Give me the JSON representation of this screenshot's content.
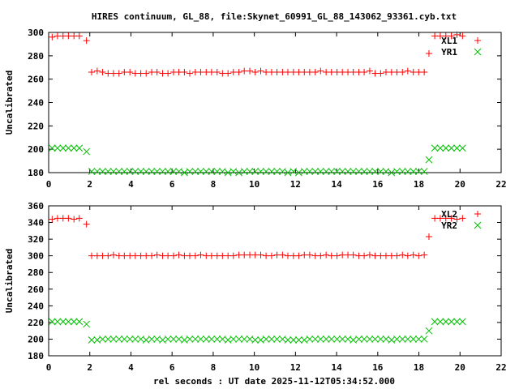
{
  "title": "HIRES continuum, GL_88, file:Skynet_60991_GL_88_143062_93361.cyb.txt",
  "colors": {
    "xl": "#ff0000",
    "yr": "#00c000"
  },
  "chart_data": [
    {
      "type": "scatter",
      "ylabel": "Uncalibrated",
      "xlabel": "",
      "xlim": [
        0,
        22
      ],
      "ylim": [
        180,
        300
      ],
      "xticks": [
        "0",
        "2",
        "4",
        "6",
        "8",
        "10",
        "12",
        "14",
        "16",
        "18",
        "20",
        "22"
      ],
      "yticks": [
        "180",
        "200",
        "220",
        "240",
        "260",
        "280",
        "300"
      ],
      "legend_position": "top-right",
      "x": [
        0.17,
        0.43,
        0.7,
        0.96,
        1.23,
        1.49,
        1.84,
        2.09,
        2.36,
        2.62,
        2.89,
        3.15,
        3.42,
        3.68,
        3.95,
        4.21,
        4.48,
        4.74,
        5.01,
        5.27,
        5.54,
        5.8,
        6.07,
        6.33,
        6.6,
        6.86,
        7.13,
        7.39,
        7.66,
        7.92,
        8.19,
        8.45,
        8.72,
        8.98,
        9.25,
        9.51,
        9.78,
        10.04,
        10.31,
        10.57,
        10.84,
        11.1,
        11.37,
        11.63,
        11.9,
        12.16,
        12.43,
        12.69,
        12.96,
        13.22,
        13.49,
        13.75,
        14.02,
        14.28,
        14.55,
        14.81,
        15.08,
        15.34,
        15.61,
        15.87,
        16.14,
        16.4,
        16.67,
        16.93,
        17.2,
        17.46,
        17.73,
        17.99,
        18.26,
        18.49,
        18.77,
        19.04,
        19.31,
        19.58,
        19.85,
        20.12
      ],
      "series": [
        {
          "name": "XL1",
          "marker": "plus",
          "values": [
            296,
            297,
            297,
            297,
            297,
            297,
            293,
            266,
            267,
            266,
            265,
            265,
            265,
            266,
            266,
            265,
            265,
            265,
            266,
            266,
            265,
            265,
            266,
            266,
            266,
            265,
            266,
            266,
            266,
            266,
            266,
            265,
            265,
            266,
            266,
            267,
            267,
            266,
            267,
            266,
            266,
            266,
            266,
            266,
            266,
            266,
            266,
            266,
            266,
            267,
            266,
            266,
            266,
            266,
            266,
            266,
            266,
            266,
            267,
            265,
            265,
            266,
            266,
            266,
            266,
            267,
            266,
            266,
            266,
            282,
            297,
            297,
            297,
            297,
            298,
            297
          ]
        },
        {
          "name": "YR1",
          "marker": "cross",
          "values": [
            201,
            201,
            201,
            201,
            201,
            201,
            198,
            181,
            181,
            181,
            181,
            181,
            181,
            181,
            181,
            181,
            181,
            181,
            181,
            181,
            181,
            181,
            181,
            181,
            180,
            181,
            181,
            181,
            181,
            181,
            181,
            181,
            180,
            181,
            180,
            181,
            181,
            181,
            181,
            181,
            181,
            181,
            181,
            180,
            181,
            180,
            181,
            181,
            181,
            181,
            181,
            181,
            181,
            181,
            181,
            181,
            181,
            181,
            181,
            181,
            181,
            181,
            180,
            181,
            181,
            181,
            181,
            181,
            181,
            191,
            201,
            201,
            201,
            201,
            201,
            201
          ]
        }
      ]
    },
    {
      "type": "scatter",
      "ylabel": "Uncalibrated",
      "xlabel": "rel seconds : UT date 2025-11-12T05:34:52.000",
      "xlim": [
        0,
        22
      ],
      "ylim": [
        180,
        360
      ],
      "xticks": [
        "0",
        "2",
        "4",
        "6",
        "8",
        "10",
        "12",
        "14",
        "16",
        "18",
        "20",
        "22"
      ],
      "yticks": [
        "180",
        "200",
        "220",
        "240",
        "260",
        "280",
        "300",
        "320",
        "340",
        "360"
      ],
      "legend_position": "top-right",
      "x": [
        0.17,
        0.43,
        0.7,
        0.96,
        1.23,
        1.49,
        1.84,
        2.09,
        2.36,
        2.62,
        2.89,
        3.15,
        3.42,
        3.68,
        3.95,
        4.21,
        4.48,
        4.74,
        5.01,
        5.27,
        5.54,
        5.8,
        6.07,
        6.33,
        6.6,
        6.86,
        7.13,
        7.39,
        7.66,
        7.92,
        8.19,
        8.45,
        8.72,
        8.98,
        9.25,
        9.51,
        9.78,
        10.04,
        10.31,
        10.57,
        10.84,
        11.1,
        11.37,
        11.63,
        11.9,
        12.16,
        12.43,
        12.69,
        12.96,
        13.22,
        13.49,
        13.75,
        14.02,
        14.28,
        14.55,
        14.81,
        15.08,
        15.34,
        15.61,
        15.87,
        16.14,
        16.4,
        16.67,
        16.93,
        17.2,
        17.46,
        17.73,
        17.99,
        18.26,
        18.49,
        18.77,
        19.04,
        19.31,
        19.58,
        19.85,
        20.12
      ],
      "series": [
        {
          "name": "XL2",
          "marker": "plus",
          "values": [
            344,
            345,
            345,
            345,
            344,
            345,
            338,
            300,
            300,
            300,
            300,
            301,
            300,
            300,
            300,
            300,
            300,
            300,
            300,
            301,
            300,
            300,
            300,
            301,
            300,
            300,
            300,
            301,
            300,
            300,
            300,
            300,
            300,
            300,
            301,
            301,
            301,
            301,
            301,
            300,
            300,
            301,
            301,
            300,
            300,
            300,
            301,
            301,
            300,
            300,
            301,
            300,
            300,
            301,
            301,
            301,
            300,
            300,
            301,
            300,
            300,
            300,
            300,
            300,
            301,
            300,
            301,
            300,
            301,
            323,
            345,
            345,
            345,
            345,
            344,
            345
          ]
        },
        {
          "name": "YR2",
          "marker": "cross",
          "values": [
            221,
            221,
            221,
            221,
            221,
            221,
            218,
            199,
            199,
            200,
            200,
            200,
            200,
            200,
            200,
            200,
            200,
            199,
            200,
            200,
            199,
            200,
            200,
            200,
            199,
            200,
            200,
            200,
            200,
            200,
            200,
            200,
            199,
            200,
            200,
            200,
            200,
            199,
            199,
            200,
            200,
            200,
            200,
            199,
            199,
            199,
            199,
            200,
            200,
            200,
            200,
            200,
            200,
            200,
            200,
            199,
            200,
            200,
            200,
            200,
            200,
            200,
            199,
            200,
            200,
            200,
            200,
            200,
            200,
            210,
            221,
            221,
            221,
            221,
            221,
            221
          ]
        }
      ]
    }
  ]
}
